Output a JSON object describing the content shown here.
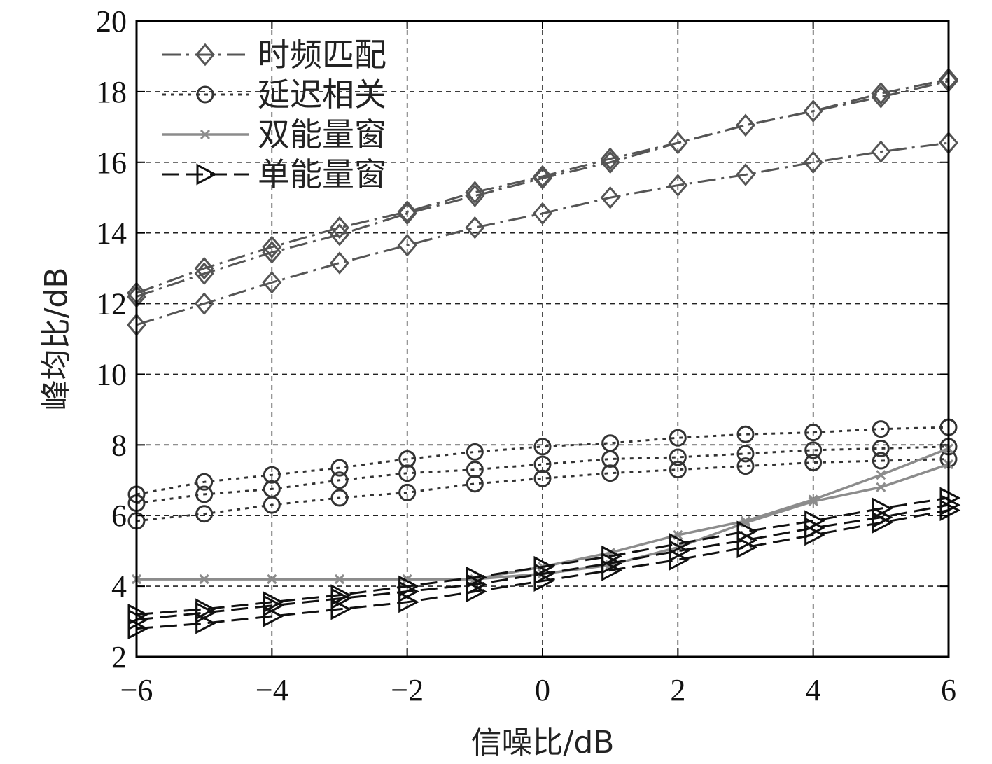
{
  "chart_data": {
    "type": "line",
    "title": "",
    "xlabel": "信噪比/dB",
    "ylabel": "峰均比/dB",
    "xlim": [
      -6,
      6
    ],
    "ylim": [
      2,
      20
    ],
    "xticks": [
      -6,
      -4,
      -2,
      0,
      2,
      4,
      6
    ],
    "xtick_labels": [
      "−6",
      "−4",
      "−2",
      "0",
      "2",
      "4",
      "6"
    ],
    "yticks": [
      2,
      4,
      6,
      8,
      10,
      12,
      14,
      16,
      18,
      20
    ],
    "ytick_labels": [
      "2",
      "4",
      "6",
      "8",
      "10",
      "12",
      "14",
      "16",
      "18",
      "20"
    ],
    "grid": true,
    "legend_position": "top-left",
    "x": [
      -6,
      -5,
      -4,
      -3,
      -2,
      -1,
      0,
      1,
      2,
      3,
      4,
      5,
      6
    ],
    "legend": [
      {
        "label": "时频匹配",
        "marker": "diamond",
        "color": "#555555",
        "dash": "dashdot"
      },
      {
        "label": "延迟相关",
        "marker": "circle",
        "color": "#333333",
        "dash": "dotted"
      },
      {
        "label": "双能量窗",
        "marker": "x",
        "color": "#8c8c8c",
        "dash": "solid"
      },
      {
        "label": "单能量窗",
        "marker": "triangle-right",
        "color": "#111111",
        "dash": "dashed"
      }
    ],
    "series": [
      {
        "group": 0,
        "values": [
          12.3,
          13.0,
          13.6,
          14.15,
          14.6,
          15.15,
          15.6,
          16.1,
          16.55,
          17.05,
          17.45,
          17.95,
          18.35
        ]
      },
      {
        "group": 0,
        "values": [
          12.2,
          12.85,
          13.45,
          13.95,
          14.55,
          15.05,
          15.55,
          16.0,
          16.55,
          17.05,
          17.45,
          17.85,
          18.3
        ]
      },
      {
        "group": 0,
        "values": [
          11.4,
          12.0,
          12.6,
          13.15,
          13.65,
          14.15,
          14.55,
          15.0,
          15.35,
          15.65,
          16.0,
          16.3,
          16.55
        ]
      },
      {
        "group": 1,
        "values": [
          6.6,
          6.95,
          7.15,
          7.35,
          7.6,
          7.8,
          7.95,
          8.05,
          8.2,
          8.3,
          8.35,
          8.45,
          8.5
        ]
      },
      {
        "group": 1,
        "values": [
          6.35,
          6.6,
          6.75,
          7.0,
          7.2,
          7.3,
          7.45,
          7.6,
          7.65,
          7.75,
          7.85,
          7.9,
          7.95
        ]
      },
      {
        "group": 1,
        "values": [
          5.85,
          6.05,
          6.3,
          6.5,
          6.65,
          6.9,
          7.05,
          7.2,
          7.3,
          7.4,
          7.5,
          7.55,
          7.6
        ]
      },
      {
        "group": 2,
        "values": [
          4.2,
          4.2,
          4.2,
          4.2,
          4.2,
          4.2,
          4.55,
          4.95,
          5.45,
          5.85,
          6.45,
          7.15,
          7.9
        ]
      },
      {
        "group": 2,
        "values": [
          4.2,
          4.2,
          4.2,
          4.2,
          4.2,
          4.2,
          4.35,
          4.6,
          5.1,
          5.8,
          6.4,
          6.8,
          7.45
        ]
      },
      {
        "group": 3,
        "values": [
          3.2,
          3.35,
          3.55,
          3.75,
          4.0,
          4.25,
          4.55,
          4.85,
          5.2,
          5.55,
          5.85,
          6.2,
          6.5
        ]
      },
      {
        "group": 3,
        "values": [
          3.05,
          3.25,
          3.45,
          3.65,
          3.85,
          4.05,
          4.35,
          4.65,
          5.0,
          5.3,
          5.65,
          5.95,
          6.3
        ]
      },
      {
        "group": 3,
        "values": [
          2.8,
          2.95,
          3.15,
          3.35,
          3.55,
          3.85,
          4.15,
          4.45,
          4.75,
          5.1,
          5.45,
          5.8,
          6.15
        ]
      }
    ]
  }
}
